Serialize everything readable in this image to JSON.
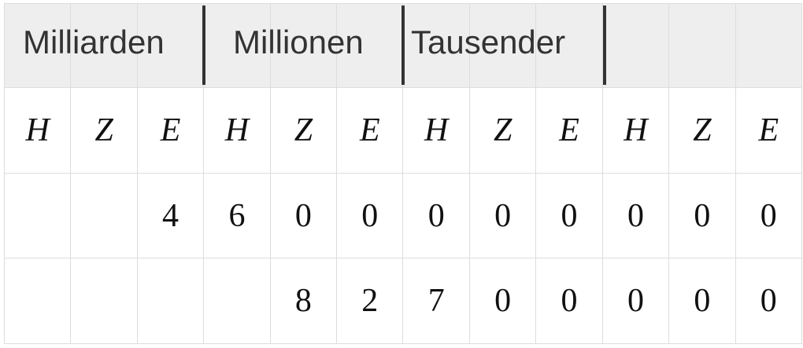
{
  "groups": [
    "Milliarden",
    "Millionen",
    "Tausender"
  ],
  "places": [
    "H",
    "Z",
    "E",
    "H",
    "Z",
    "E",
    "H",
    "Z",
    "E",
    "H",
    "Z",
    "E"
  ],
  "rows": [
    [
      "",
      "",
      "4",
      "6",
      "0",
      "0",
      "0",
      "0",
      "0",
      "0",
      "0",
      "0"
    ],
    [
      "",
      "",
      "",
      "",
      "8",
      "2",
      "7",
      "0",
      "0",
      "0",
      "0",
      "0"
    ]
  ]
}
